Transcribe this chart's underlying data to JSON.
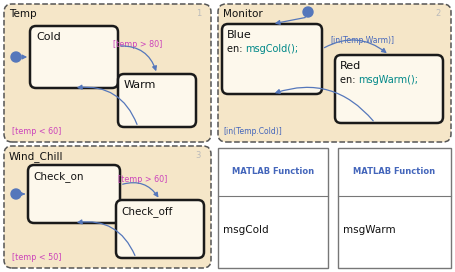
{
  "bg_color": "#f5e6c8",
  "fig_bg": "#ffffff",
  "state_fc": "#fdf8ec",
  "state_ec": "#1a1a1a",
  "container_ec": "#555555",
  "arrow_color": "#5577bb",
  "label_magenta": "#cc44bb",
  "label_teal": "#008888",
  "label_blue": "#4466bb",
  "num_color": "#bbbbbb",
  "temp_title": "Temp",
  "temp_num": "1",
  "monitor_title": "Monitor",
  "monitor_num": "2",
  "windchill_title": "Wind_Chill",
  "windchill_num": "3",
  "cold_label": "Cold",
  "warm_label": "Warm",
  "blue_line1": "Blue",
  "blue_line2": "en: ",
  "blue_line2b": "msgCold();",
  "red_line1": "Red",
  "red_line2": "en: ",
  "red_line2b": "msgWarm();",
  "checkon_label": "Check_on",
  "checkoff_label": "Check_off",
  "arr_temp_warm": "[temp > 80]",
  "arr_temp_cold": "[temp < 60]",
  "arr_windchill_on": "[temp > 60]",
  "arr_windchill_off": "[temp < 50]",
  "arr_in_warm": "[in(Temp.Warm)]",
  "arr_in_cold": "[in(Temp.Cold)]",
  "matlab1_header": "MATLAB Function",
  "matlab1_label": "msgCold",
  "matlab2_header": "MATLAB Function",
  "matlab2_label": "msgWarm"
}
